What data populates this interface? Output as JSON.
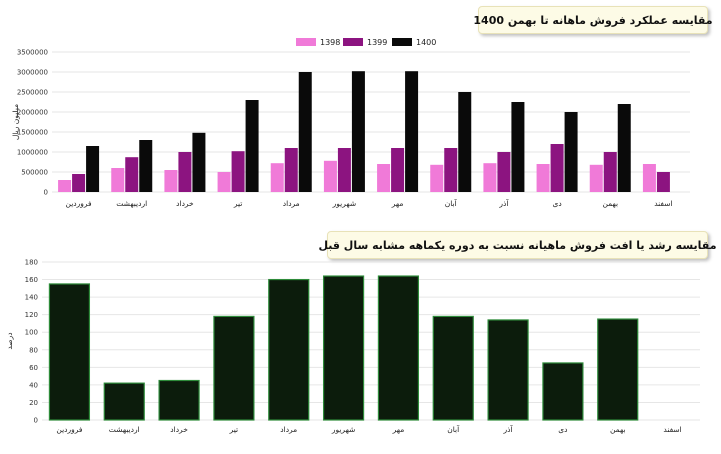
{
  "colors": {
    "s1398": "#f07ad8",
    "s1399": "#8c1480",
    "s1400": "#0a0a0a",
    "growth_fill": "#0c1c0c",
    "growth_stroke": "#2e8b3a"
  },
  "charts": {
    "monthly": {
      "title": "مقایسه عملکرد فروش ماهانه تا بهمن 1400"
    },
    "growth": {
      "title": "مقایسه رشد یا افت فروش ماهیانه نسبت به دوره یکماهه مشابه سال قبل"
    }
  },
  "chart_data": [
    {
      "type": "bar",
      "title": "مقایسه عملکرد فروش ماهانه تا بهمن 1400",
      "ylabel": "میلیون ریال",
      "xlabel": "",
      "ylim": [
        0,
        3500000
      ],
      "yticks": [
        0,
        500000,
        1000000,
        1500000,
        2000000,
        2500000,
        3000000,
        3500000
      ],
      "grid": true,
      "legend": "top-center",
      "categories": [
        "فروردین",
        "اردیبهشت",
        "خرداد",
        "تیر",
        "مرداد",
        "شهریور",
        "مهر",
        "آبان",
        "آذر",
        "دی",
        "بهمن",
        "اسفند"
      ],
      "series": [
        {
          "name": "1398",
          "values": [
            300000,
            600000,
            550000,
            500000,
            720000,
            780000,
            700000,
            680000,
            720000,
            700000,
            680000,
            700000
          ]
        },
        {
          "name": "1399",
          "values": [
            450000,
            870000,
            1000000,
            1020000,
            1100000,
            1100000,
            1100000,
            1100000,
            1000000,
            1200000,
            1000000,
            500000
          ]
        },
        {
          "name": "1400",
          "values": [
            1150000,
            1300000,
            1480000,
            2300000,
            3000000,
            3020000,
            3020000,
            2500000,
            2250000,
            2000000,
            2200000,
            null
          ]
        }
      ]
    },
    {
      "type": "bar",
      "title": "مقایسه رشد یا افت فروش ماهیانه نسبت به دوره یکماهه مشابه سال قبل",
      "ylabel": "درصد",
      "xlabel": "",
      "ylim": [
        0,
        180
      ],
      "yticks": [
        0,
        20,
        40,
        60,
        80,
        100,
        120,
        140,
        160,
        180
      ],
      "grid": true,
      "categories": [
        "فروردین",
        "اردیبهشت",
        "خرداد",
        "تیر",
        "مرداد",
        "شهریور",
        "مهر",
        "آبان",
        "آذر",
        "دی",
        "بهمن",
        "اسفند"
      ],
      "values": [
        155,
        42,
        45,
        118,
        160,
        164,
        164,
        118,
        114,
        65,
        115,
        null
      ]
    }
  ]
}
